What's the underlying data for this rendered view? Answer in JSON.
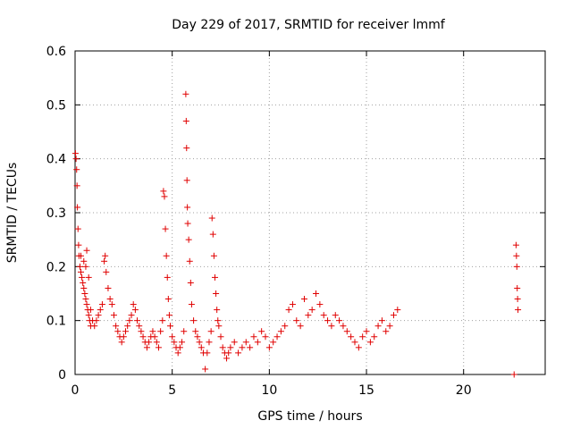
{
  "chart_data": {
    "type": "scatter",
    "title": "Day 229 of 2017, SRMTID for receiver lmmf",
    "xlabel": "GPS time / hours",
    "ylabel": "SRMTID / TECUs",
    "xlim": [
      0,
      24.2
    ],
    "ylim": [
      0,
      0.6
    ],
    "xticks": [
      0,
      5,
      10,
      15,
      20
    ],
    "xtick_labels": [
      "0",
      "5",
      "10",
      "15",
      "20"
    ],
    "yticks": [
      0,
      0.1,
      0.2,
      0.3,
      0.4,
      0.5,
      0.6
    ],
    "ytick_labels": [
      "0",
      "0.1",
      "0.2",
      "0.3",
      "0.4",
      "0.5",
      "0.6"
    ],
    "grid": true,
    "marker": "plus",
    "marker_color": "#e00000",
    "series": [
      {
        "name": "SRMTID",
        "points": [
          [
            0.02,
            0.41
          ],
          [
            0.05,
            0.4
          ],
          [
            0.08,
            0.38
          ],
          [
            0.1,
            0.35
          ],
          [
            0.12,
            0.31
          ],
          [
            0.15,
            0.27
          ],
          [
            0.18,
            0.24
          ],
          [
            0.2,
            0.22
          ],
          [
            0.25,
            0.2
          ],
          [
            0.3,
            0.19
          ],
          [
            0.35,
            0.18
          ],
          [
            0.4,
            0.17
          ],
          [
            0.45,
            0.16
          ],
          [
            0.5,
            0.15
          ],
          [
            0.55,
            0.14
          ],
          [
            0.6,
            0.13
          ],
          [
            0.65,
            0.12
          ],
          [
            0.7,
            0.11
          ],
          [
            0.75,
            0.1
          ],
          [
            0.8,
            0.09
          ],
          [
            0.3,
            0.22
          ],
          [
            0.45,
            0.21
          ],
          [
            0.55,
            0.2
          ],
          [
            0.6,
            0.23
          ],
          [
            0.7,
            0.18
          ],
          [
            0.8,
            0.12
          ],
          [
            0.9,
            0.1
          ],
          [
            1.0,
            0.09
          ],
          [
            1.1,
            0.1
          ],
          [
            1.2,
            0.11
          ],
          [
            1.3,
            0.12
          ],
          [
            1.4,
            0.13
          ],
          [
            1.5,
            0.21
          ],
          [
            1.55,
            0.22
          ],
          [
            1.6,
            0.19
          ],
          [
            1.7,
            0.16
          ],
          [
            1.8,
            0.14
          ],
          [
            1.9,
            0.13
          ],
          [
            2.0,
            0.11
          ],
          [
            2.1,
            0.09
          ],
          [
            2.2,
            0.08
          ],
          [
            2.3,
            0.07
          ],
          [
            2.4,
            0.06
          ],
          [
            2.5,
            0.07
          ],
          [
            2.6,
            0.08
          ],
          [
            2.7,
            0.09
          ],
          [
            2.8,
            0.1
          ],
          [
            2.9,
            0.11
          ],
          [
            3.0,
            0.13
          ],
          [
            3.1,
            0.12
          ],
          [
            3.2,
            0.1
          ],
          [
            3.3,
            0.09
          ],
          [
            3.4,
            0.08
          ],
          [
            3.5,
            0.07
          ],
          [
            3.6,
            0.06
          ],
          [
            3.7,
            0.05
          ],
          [
            3.8,
            0.06
          ],
          [
            3.9,
            0.07
          ],
          [
            4.0,
            0.08
          ],
          [
            4.1,
            0.07
          ],
          [
            4.2,
            0.06
          ],
          [
            4.3,
            0.05
          ],
          [
            4.4,
            0.08
          ],
          [
            4.5,
            0.1
          ],
          [
            4.55,
            0.34
          ],
          [
            4.6,
            0.33
          ],
          [
            4.65,
            0.27
          ],
          [
            4.7,
            0.22
          ],
          [
            4.75,
            0.18
          ],
          [
            4.8,
            0.14
          ],
          [
            4.85,
            0.11
          ],
          [
            4.9,
            0.09
          ],
          [
            5.0,
            0.07
          ],
          [
            5.1,
            0.06
          ],
          [
            5.2,
            0.05
          ],
          [
            5.3,
            0.04
          ],
          [
            5.4,
            0.05
          ],
          [
            5.5,
            0.06
          ],
          [
            5.6,
            0.08
          ],
          [
            5.7,
            0.52
          ],
          [
            5.72,
            0.47
          ],
          [
            5.74,
            0.42
          ],
          [
            5.76,
            0.36
          ],
          [
            5.78,
            0.31
          ],
          [
            5.8,
            0.28
          ],
          [
            5.85,
            0.25
          ],
          [
            5.9,
            0.21
          ],
          [
            5.95,
            0.17
          ],
          [
            6.0,
            0.13
          ],
          [
            6.1,
            0.1
          ],
          [
            6.2,
            0.08
          ],
          [
            6.3,
            0.07
          ],
          [
            6.4,
            0.06
          ],
          [
            6.5,
            0.05
          ],
          [
            6.6,
            0.04
          ],
          [
            6.7,
            0.01
          ],
          [
            6.8,
            0.04
          ],
          [
            6.9,
            0.06
          ],
          [
            7.0,
            0.08
          ],
          [
            7.05,
            0.29
          ],
          [
            7.1,
            0.26
          ],
          [
            7.15,
            0.22
          ],
          [
            7.2,
            0.18
          ],
          [
            7.25,
            0.15
          ],
          [
            7.3,
            0.12
          ],
          [
            7.35,
            0.1
          ],
          [
            7.4,
            0.09
          ],
          [
            7.5,
            0.07
          ],
          [
            7.6,
            0.05
          ],
          [
            7.7,
            0.04
          ],
          [
            7.8,
            0.03
          ],
          [
            7.9,
            0.04
          ],
          [
            8.0,
            0.05
          ],
          [
            8.2,
            0.06
          ],
          [
            8.4,
            0.04
          ],
          [
            8.6,
            0.05
          ],
          [
            8.8,
            0.06
          ],
          [
            9.0,
            0.05
          ],
          [
            9.2,
            0.07
          ],
          [
            9.4,
            0.06
          ],
          [
            9.6,
            0.08
          ],
          [
            9.8,
            0.07
          ],
          [
            10.0,
            0.05
          ],
          [
            10.2,
            0.06
          ],
          [
            10.4,
            0.07
          ],
          [
            10.6,
            0.08
          ],
          [
            10.8,
            0.09
          ],
          [
            11.0,
            0.12
          ],
          [
            11.2,
            0.13
          ],
          [
            11.4,
            0.1
          ],
          [
            11.6,
            0.09
          ],
          [
            11.8,
            0.14
          ],
          [
            12.0,
            0.11
          ],
          [
            12.2,
            0.12
          ],
          [
            12.4,
            0.15
          ],
          [
            12.6,
            0.13
          ],
          [
            12.8,
            0.11
          ],
          [
            13.0,
            0.1
          ],
          [
            13.2,
            0.09
          ],
          [
            13.4,
            0.11
          ],
          [
            13.6,
            0.1
          ],
          [
            13.8,
            0.09
          ],
          [
            14.0,
            0.08
          ],
          [
            14.2,
            0.07
          ],
          [
            14.4,
            0.06
          ],
          [
            14.6,
            0.05
          ],
          [
            14.8,
            0.07
          ],
          [
            15.0,
            0.08
          ],
          [
            15.2,
            0.06
          ],
          [
            15.4,
            0.07
          ],
          [
            15.6,
            0.09
          ],
          [
            15.8,
            0.1
          ],
          [
            16.0,
            0.08
          ],
          [
            16.2,
            0.09
          ],
          [
            16.4,
            0.11
          ],
          [
            16.6,
            0.12
          ],
          [
            22.7,
            0.24
          ],
          [
            22.72,
            0.22
          ],
          [
            22.74,
            0.2
          ],
          [
            22.76,
            0.16
          ],
          [
            22.78,
            0.14
          ],
          [
            22.8,
            0.12
          ],
          [
            22.6,
            0.0
          ]
        ]
      }
    ]
  }
}
